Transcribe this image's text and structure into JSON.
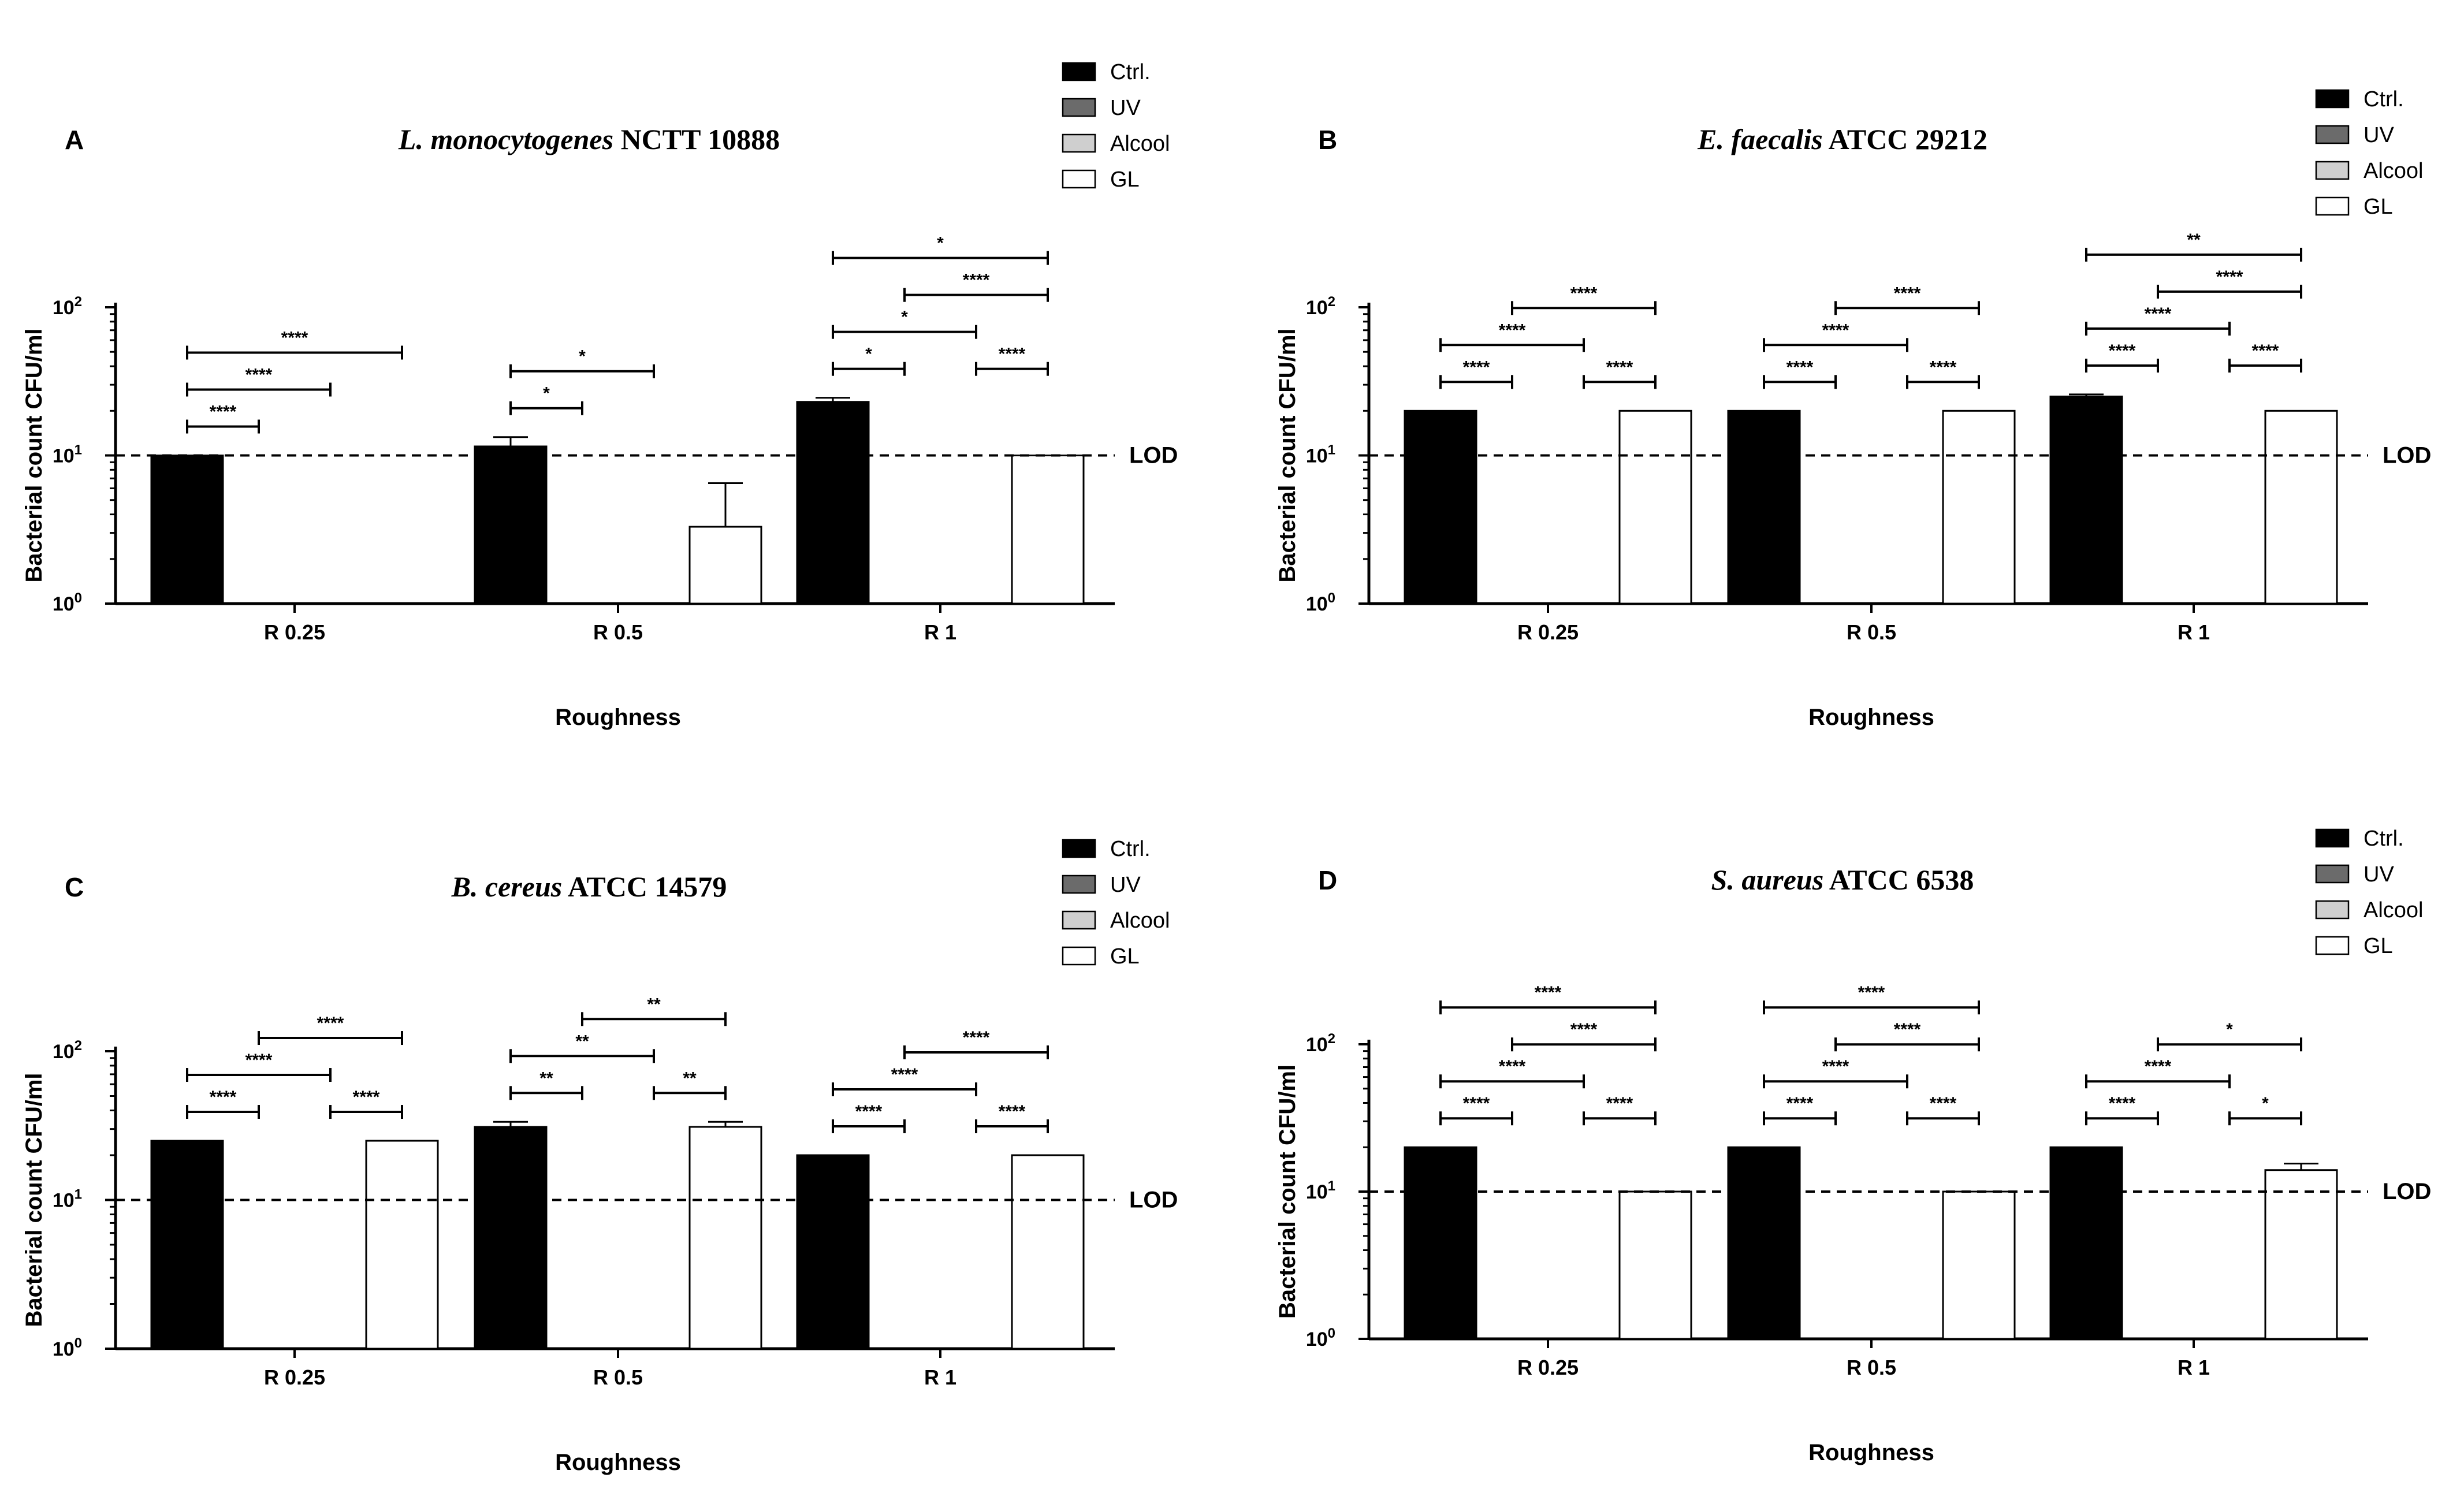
{
  "figure": {
    "lod_label": "LOD",
    "legend_labels": [
      "Ctrl.",
      "UV",
      "Alcool",
      "GL"
    ],
    "series_colors": {
      "Ctrl.": "#000000",
      "UV": "#6b6b6b",
      "Alcool": "#cfcfcf",
      "GL": "#ffffff"
    }
  },
  "chart_data": [
    {
      "panel": "A",
      "type": "bar",
      "title_species": "L. monocytogenes",
      "title_strain": "NCTT 10888",
      "xlabel": "Roughness",
      "ylabel": "Bacterial count CFU/ml",
      "yscale": "log",
      "ylim": [
        1,
        100
      ],
      "ytick_labels": [
        "10",
        "10",
        "10"
      ],
      "ytick_exponents": [
        "0",
        "1",
        "2"
      ],
      "lod": 10,
      "categories": [
        "R 0.25",
        "R 0.5",
        "R 1"
      ],
      "series": [
        {
          "name": "Ctrl.",
          "values": [
            10,
            11.5,
            23
          ],
          "errors": [
            0,
            1.8,
            1.5
          ]
        },
        {
          "name": "UV",
          "values": [
            null,
            null,
            null
          ],
          "errors": [
            0,
            0,
            0
          ]
        },
        {
          "name": "Alcool",
          "values": [
            null,
            null,
            null
          ],
          "errors": [
            0,
            0,
            0
          ]
        },
        {
          "name": "GL",
          "values": [
            null,
            3.3,
            10
          ],
          "errors": [
            0,
            3.2,
            0
          ]
        }
      ],
      "comparisons": [
        {
          "cat": 0,
          "from": 0,
          "to": 3,
          "label": "****"
        },
        {
          "cat": 0,
          "from": 0,
          "to": 2,
          "label": "****"
        },
        {
          "cat": 0,
          "from": 0,
          "to": 1,
          "label": "****"
        },
        {
          "cat": 1,
          "from": 0,
          "to": 2,
          "label": "*"
        },
        {
          "cat": 1,
          "from": 0,
          "to": 1,
          "label": "*"
        },
        {
          "cat": 2,
          "from": 0,
          "to": 3,
          "label": "*"
        },
        {
          "cat": 2,
          "from": 0,
          "to": 2,
          "label": "*"
        },
        {
          "cat": 2,
          "from": 0,
          "to": 1,
          "label": "*"
        },
        {
          "cat": 2,
          "from": 1,
          "to": 3,
          "label": "****"
        },
        {
          "cat": 2,
          "from": 2,
          "to": 3,
          "label": "****"
        }
      ]
    },
    {
      "panel": "B",
      "type": "bar",
      "title_species": "E. faecalis",
      "title_strain": "ATCC 29212",
      "xlabel": "Roughness",
      "ylabel": "Bacterial count CFU/ml",
      "yscale": "log",
      "ylim": [
        1,
        100
      ],
      "ytick_labels": [
        "10",
        "10",
        "10"
      ],
      "ytick_exponents": [
        "0",
        "1",
        "2"
      ],
      "lod": 10,
      "categories": [
        "R 0.25",
        "R 0.5",
        "R 1"
      ],
      "series": [
        {
          "name": "Ctrl.",
          "values": [
            20,
            20,
            25
          ],
          "errors": [
            0,
            0,
            0.8
          ]
        },
        {
          "name": "UV",
          "values": [
            null,
            null,
            null
          ],
          "errors": [
            0,
            0,
            0
          ]
        },
        {
          "name": "Alcool",
          "values": [
            null,
            null,
            null
          ],
          "errors": [
            0,
            0,
            0
          ]
        },
        {
          "name": "GL",
          "values": [
            20,
            20,
            20
          ],
          "errors": [
            0,
            0,
            0
          ]
        }
      ],
      "comparisons": [
        {
          "cat": 0,
          "from": 0,
          "to": 2,
          "label": "****"
        },
        {
          "cat": 0,
          "from": 2,
          "to": 3,
          "label": "****"
        },
        {
          "cat": 0,
          "from": 0,
          "to": 1,
          "label": "****"
        },
        {
          "cat": 0,
          "from": 1,
          "to": 3,
          "label": "****"
        },
        {
          "cat": 1,
          "from": 0,
          "to": 2,
          "label": "****"
        },
        {
          "cat": 1,
          "from": 2,
          "to": 3,
          "label": "****"
        },
        {
          "cat": 1,
          "from": 0,
          "to": 1,
          "label": "****"
        },
        {
          "cat": 1,
          "from": 1,
          "to": 3,
          "label": "****"
        },
        {
          "cat": 2,
          "from": 0,
          "to": 3,
          "label": "**"
        },
        {
          "cat": 2,
          "from": 0,
          "to": 2,
          "label": "****"
        },
        {
          "cat": 2,
          "from": 2,
          "to": 3,
          "label": "****"
        },
        {
          "cat": 2,
          "from": 0,
          "to": 1,
          "label": "****"
        },
        {
          "cat": 2,
          "from": 1,
          "to": 3,
          "label": "****"
        }
      ]
    },
    {
      "panel": "C",
      "type": "bar",
      "title_species": "B. cereus",
      "title_strain": "ATCC 14579",
      "xlabel": "Roughness",
      "ylabel": "Bacterial count CFU/ml",
      "yscale": "log",
      "ylim": [
        1,
        100
      ],
      "ytick_labels": [
        "10",
        "10",
        "10"
      ],
      "ytick_exponents": [
        "0",
        "1",
        "2"
      ],
      "lod": 10,
      "categories": [
        "R 0.25",
        "R 0.5",
        "R 1"
      ],
      "series": [
        {
          "name": "Ctrl.",
          "values": [
            25,
            31,
            20
          ],
          "errors": [
            0,
            2.5,
            0
          ]
        },
        {
          "name": "UV",
          "values": [
            null,
            null,
            null
          ],
          "errors": [
            0,
            0,
            0
          ]
        },
        {
          "name": "Alcool",
          "values": [
            null,
            null,
            null
          ],
          "errors": [
            0,
            0,
            0
          ]
        },
        {
          "name": "GL",
          "values": [
            25,
            31,
            20
          ],
          "errors": [
            0,
            2.5,
            0
          ]
        }
      ],
      "comparisons": [
        {
          "cat": 0,
          "from": 0,
          "to": 2,
          "label": "****"
        },
        {
          "cat": 0,
          "from": 2,
          "to": 3,
          "label": "****"
        },
        {
          "cat": 0,
          "from": 0,
          "to": 1,
          "label": "****"
        },
        {
          "cat": 0,
          "from": 1,
          "to": 3,
          "label": "****"
        },
        {
          "cat": 1,
          "from": 0,
          "to": 2,
          "label": "**"
        },
        {
          "cat": 1,
          "from": 2,
          "to": 3,
          "label": "**"
        },
        {
          "cat": 1,
          "from": 0,
          "to": 1,
          "label": "**"
        },
        {
          "cat": 1,
          "from": 1,
          "to": 3,
          "label": "**"
        },
        {
          "cat": 2,
          "from": 0,
          "to": 2,
          "label": "****"
        },
        {
          "cat": 2,
          "from": 2,
          "to": 3,
          "label": "****"
        },
        {
          "cat": 2,
          "from": 0,
          "to": 1,
          "label": "****"
        },
        {
          "cat": 2,
          "from": 1,
          "to": 3,
          "label": "****"
        }
      ]
    },
    {
      "panel": "D",
      "type": "bar",
      "title_species": "S. aureus",
      "title_strain": "ATCC 6538",
      "xlabel": "Roughness",
      "ylabel": "Bacterial count CFU/ml",
      "yscale": "log",
      "ylim": [
        1,
        100
      ],
      "ytick_labels": [
        "10",
        "10",
        "10"
      ],
      "ytick_exponents": [
        "0",
        "1",
        "2"
      ],
      "lod": 10,
      "categories": [
        "R 0.25",
        "R 0.5",
        "R 1"
      ],
      "series": [
        {
          "name": "Ctrl.",
          "values": [
            20,
            20,
            20
          ],
          "errors": [
            0,
            0,
            0
          ]
        },
        {
          "name": "UV",
          "values": [
            null,
            null,
            null
          ],
          "errors": [
            0,
            0,
            0
          ]
        },
        {
          "name": "Alcool",
          "values": [
            null,
            null,
            null
          ],
          "errors": [
            0,
            0,
            0
          ]
        },
        {
          "name": "GL",
          "values": [
            10,
            10,
            14
          ],
          "errors": [
            0,
            0,
            1.5
          ]
        }
      ],
      "comparisons": [
        {
          "cat": 0,
          "from": 0,
          "to": 3,
          "label": "****"
        },
        {
          "cat": 0,
          "from": 0,
          "to": 2,
          "label": "****"
        },
        {
          "cat": 0,
          "from": 0,
          "to": 1,
          "label": "****"
        },
        {
          "cat": 0,
          "from": 1,
          "to": 3,
          "label": "****"
        },
        {
          "cat": 0,
          "from": 2,
          "to": 3,
          "label": "****"
        },
        {
          "cat": 1,
          "from": 0,
          "to": 3,
          "label": "****"
        },
        {
          "cat": 1,
          "from": 0,
          "to": 2,
          "label": "****"
        },
        {
          "cat": 1,
          "from": 0,
          "to": 1,
          "label": "****"
        },
        {
          "cat": 1,
          "from": 1,
          "to": 3,
          "label": "****"
        },
        {
          "cat": 1,
          "from": 2,
          "to": 3,
          "label": "****"
        },
        {
          "cat": 2,
          "from": 0,
          "to": 2,
          "label": "****"
        },
        {
          "cat": 2,
          "from": 2,
          "to": 3,
          "label": "*"
        },
        {
          "cat": 2,
          "from": 0,
          "to": 1,
          "label": "****"
        },
        {
          "cat": 2,
          "from": 1,
          "to": 3,
          "label": "*"
        }
      ]
    }
  ]
}
